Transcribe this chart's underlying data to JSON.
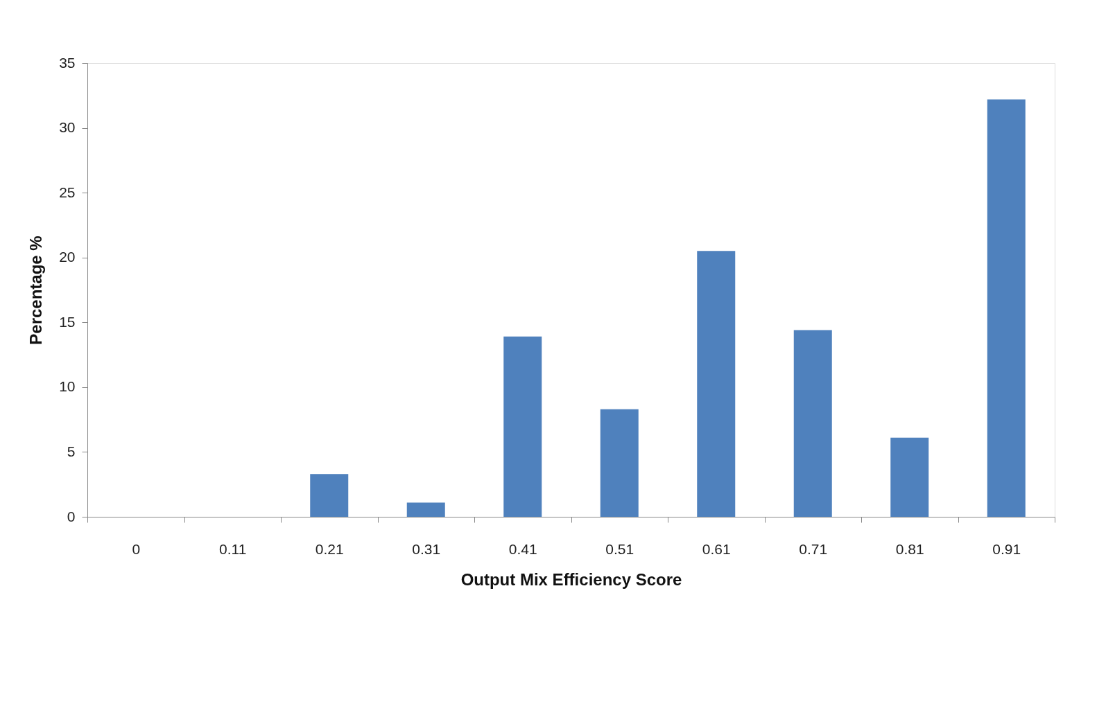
{
  "chart_data": {
    "type": "bar",
    "xlabel": "Output Mix Efficiency Score",
    "ylabel": "Percentage %",
    "categories": [
      "0",
      "0.11",
      "0.21",
      "0.31",
      "0.41",
      "0.51",
      "0.61",
      "0.71",
      "0.81",
      "0.91"
    ],
    "values": [
      0,
      0,
      3.3,
      1.1,
      13.9,
      8.3,
      20.5,
      14.4,
      6.1,
      32.2
    ],
    "color": "#4f81bd",
    "ylim": [
      0,
      35
    ],
    "yticks": [
      0,
      5,
      10,
      15,
      20,
      25,
      30,
      35
    ],
    "grid": false
  }
}
